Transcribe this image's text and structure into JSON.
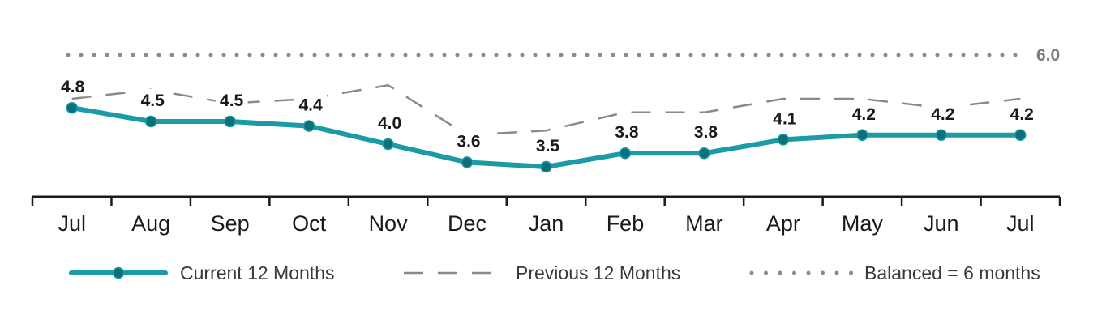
{
  "chart_data": {
    "type": "line",
    "categories": [
      "Jul",
      "Aug",
      "Sep",
      "Oct",
      "Nov",
      "Dec",
      "Jan",
      "Feb",
      "Mar",
      "Apr",
      "May",
      "Jun",
      "Jul"
    ],
    "series": [
      {
        "name": "Current 12 Months",
        "values": [
          4.8,
          4.5,
          4.5,
          4.4,
          4.0,
          3.6,
          3.5,
          3.8,
          3.8,
          4.1,
          4.2,
          4.2,
          4.2
        ],
        "color": "#1a9ba6",
        "style": "solid-with-markers",
        "marker_color": "#0d6f78"
      },
      {
        "name": "Previous 12 Months",
        "values": [
          5.0,
          5.2,
          4.9,
          5.0,
          5.3,
          4.2,
          4.3,
          4.7,
          4.7,
          5.0,
          5.0,
          4.8,
          5.0
        ],
        "color": "#8a8a8a",
        "style": "dashed"
      }
    ],
    "reference_line": {
      "name": "Balanced = 6 months",
      "value": 6.0,
      "label": "6.0",
      "color": "#8a8a8a",
      "style": "dotted"
    },
    "data_labels": [
      "4.8",
      "4.5",
      "4.5",
      "4.4",
      "4.0",
      "3.6",
      "3.5",
      "3.8",
      "3.8",
      "4.1",
      "4.2",
      "4.2",
      "4.2"
    ],
    "ylim": [
      3.0,
      6.5
    ],
    "grid": false,
    "legend_position": "bottom",
    "legend": [
      {
        "label": "Current 12 Months",
        "style": "solid-with-markers"
      },
      {
        "label": "Previous 12 Months",
        "style": "dashed"
      },
      {
        "label": "Balanced = 6 months",
        "style": "dotted"
      }
    ],
    "axis_color": "#1a1a1a"
  }
}
